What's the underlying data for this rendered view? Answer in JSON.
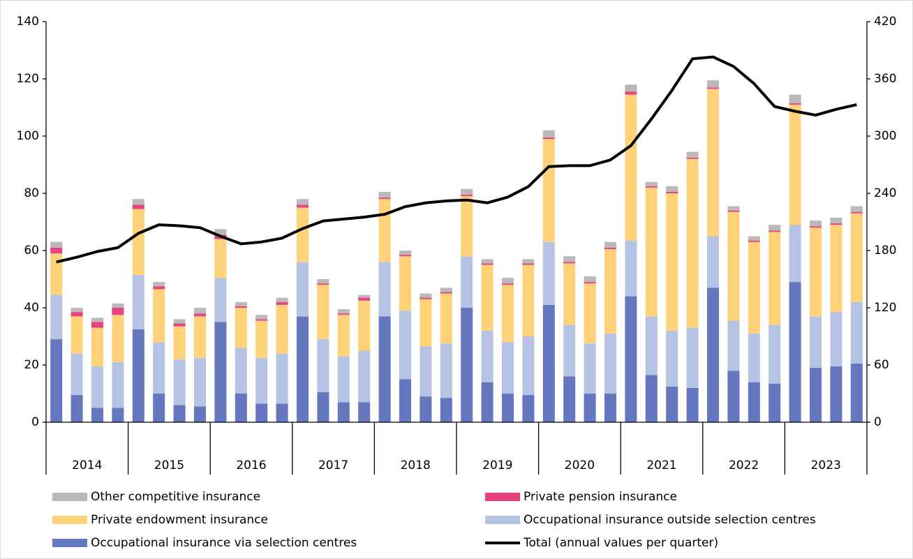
{
  "chart_data": {
    "type": "bar",
    "groups": [
      "2014",
      "2015",
      "2016",
      "2017",
      "2018",
      "2019",
      "2020",
      "2021",
      "2022",
      "2023"
    ],
    "categories": [
      null,
      null,
      null,
      null,
      null,
      null,
      null,
      null,
      null,
      null,
      null,
      null,
      null,
      null,
      null,
      null,
      null,
      null,
      null,
      null,
      null,
      null,
      null,
      null,
      null,
      null,
      null,
      null,
      null,
      null,
      null,
      null,
      null,
      null,
      null,
      null,
      null,
      null,
      null,
      null
    ],
    "series": [
      {
        "name": "Other competitive insurance",
        "color": "#b9b9b9",
        "values": [
          2,
          1.5,
          1.5,
          1.5,
          2,
          1.5,
          1.5,
          2,
          2,
          1.5,
          1.5,
          1.5,
          2,
          1.5,
          1.5,
          1,
          2,
          1.5,
          1.5,
          1.5,
          2,
          1.5,
          2,
          1.5,
          2.5,
          2,
          2,
          2,
          2.5,
          1.5,
          2,
          2,
          2.5,
          1.5,
          1.5,
          2,
          3,
          2,
          2,
          2
        ]
      },
      {
        "name": "Private pension insurance",
        "color": "#e8417f",
        "values": [
          2,
          1.5,
          2,
          2.5,
          1.5,
          1,
          1,
          1,
          1.5,
          0.5,
          0.5,
          1,
          1,
          0.5,
          0.5,
          1,
          0.5,
          0.5,
          0.5,
          0.5,
          0.5,
          0.5,
          0.5,
          0.5,
          0.5,
          0.5,
          0.5,
          0.5,
          1,
          0.5,
          0.5,
          0.5,
          0.5,
          0.5,
          0.5,
          0.5,
          0.5,
          0.5,
          0.5,
          0.5
        ]
      },
      {
        "name": "Private endowment insurance",
        "color": "#ffd27a",
        "values": [
          14.5,
          13,
          13.5,
          16.5,
          23,
          18.5,
          11.5,
          14.5,
          13.5,
          14,
          13,
          17,
          19,
          19,
          14.5,
          17.5,
          22,
          19,
          16.5,
          17.5,
          21,
          23,
          20,
          25,
          36,
          21.5,
          21,
          29.5,
          51,
          45,
          48,
          59,
          51.5,
          38,
          32,
          32.5,
          42,
          31,
          30.5,
          31
        ]
      },
      {
        "name": "Occupational insurance outside selection centres",
        "color": "#b7c3e4",
        "values": [
          15.5,
          14.5,
          14.5,
          16,
          19,
          18,
          16,
          17,
          15.5,
          16,
          16,
          17.5,
          19,
          18.5,
          16,
          18,
          19,
          24,
          17.5,
          19,
          18,
          18,
          18,
          20.5,
          22,
          18,
          17.5,
          21,
          19.5,
          20.5,
          19.5,
          21,
          18,
          17.5,
          17,
          20.5,
          20,
          18,
          19,
          21.5
        ]
      },
      {
        "name": "Occupational insurance via selection centres",
        "color": "#6577be",
        "values": [
          29,
          9.5,
          5,
          5,
          32.5,
          10,
          6,
          5.5,
          35,
          10,
          6.5,
          6.5,
          37,
          10.5,
          7,
          7,
          37,
          15,
          9,
          8.5,
          40,
          14,
          10,
          9.5,
          41,
          16,
          10,
          10,
          44,
          16.5,
          12.5,
          12,
          47,
          18,
          14,
          13.5,
          49,
          19,
          19.5,
          20.5
        ]
      },
      {
        "name": "Total (annual values per quarter)",
        "color": "#000000",
        "type": "line",
        "axis": "y2",
        "values": [
          168,
          173,
          179,
          183,
          198,
          207,
          206,
          204,
          195,
          187,
          189,
          193,
          203,
          211,
          213,
          215,
          218,
          226,
          230,
          232,
          233,
          230,
          236,
          247,
          268,
          269,
          269,
          275,
          290,
          318,
          348,
          381,
          383,
          373,
          355,
          331,
          326,
          322,
          328,
          333
        ]
      }
    ],
    "stacked": true,
    "ylim": [
      0,
      140
    ],
    "yticks": [
      0,
      20,
      40,
      60,
      80,
      100,
      120,
      140
    ],
    "y2lim": [
      0,
      420
    ],
    "y2ticks": [
      0,
      60,
      120,
      180,
      240,
      300,
      360,
      420
    ]
  }
}
